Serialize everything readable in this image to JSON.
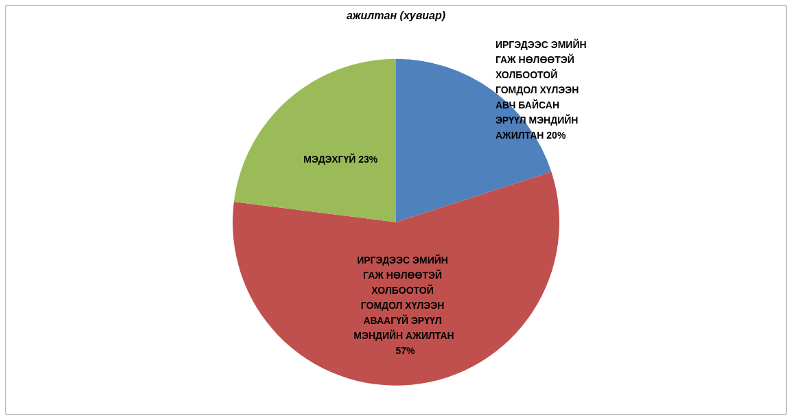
{
  "chart_data": {
    "type": "pie",
    "title": "ажилтан (хувиар)",
    "categories": [
      "ИРГЭДЭЭС ЭМИЙН ГАЖ НӨЛӨӨТЭЙ ХОЛБООТОЙ ГОМДОЛ ХҮЛЭЭН АВЧ БАЙСАН ЭРҮҮЛ МЭНДИЙН АЖИЛТАН",
      "ИРГЭДЭЭС ЭМИЙН ГАЖ НӨЛӨӨТЭЙ ХОЛБООТОЙ ГОМДОЛ ХҮЛЭЭН АВААГҮЙ ЭРҮҮЛ МЭНДИЙН АЖИЛТАН",
      "МЭДЭХГҮЙ"
    ],
    "values": [
      20,
      57,
      23
    ],
    "value_labels": [
      "20%",
      "57%",
      "23%"
    ],
    "colors": [
      "#4f81bd",
      "#c0504d",
      "#9bbb59"
    ],
    "legend": false
  }
}
